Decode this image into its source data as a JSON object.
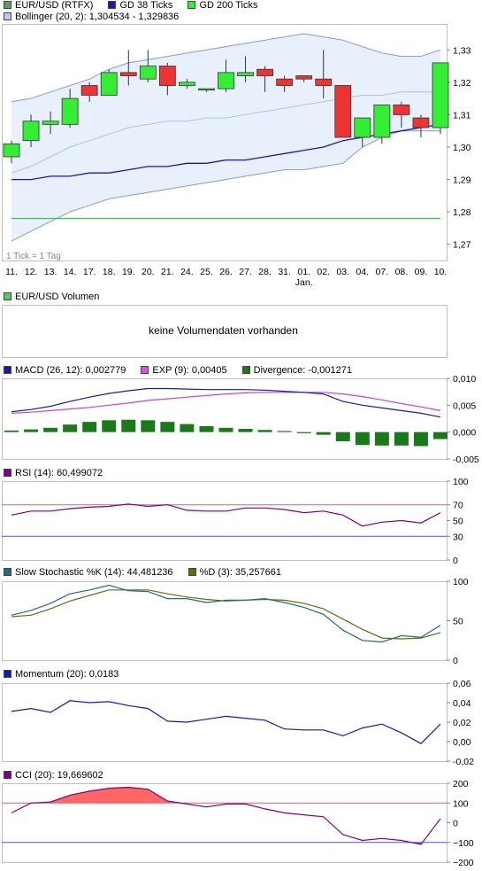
{
  "colors": {
    "up": "#33ee33",
    "down": "#ee3333",
    "gd38": "#1a1aa8",
    "gd200": "#33cc33",
    "bollinger_fill": "#e8f0fc",
    "bollinger_line": "#8899dd",
    "macd": "#1a1aa8",
    "exp": "#d040d0",
    "divergence": "#1a7a1a",
    "rsi": "#800080",
    "stoch_k": "#207070",
    "stoch_d": "#6a6a10",
    "momentum": "#1a1aa8",
    "cci": "#800080",
    "cci_fill": "#ff6666",
    "ref_red": "#e06060",
    "ref_blue": "#5050d0"
  },
  "legends": {
    "main": [
      {
        "label": "EUR/USD (RTFX)",
        "color": "#5a9f5a"
      },
      {
        "label": "GD 38 Ticks",
        "color": "#1a1aa8"
      },
      {
        "label": "GD 200 Ticks",
        "color": "#33ee33"
      }
    ],
    "bollinger": {
      "label": "Bollinger (20, 2): 1,304534 - 1,329836",
      "color": "#b8c8f0"
    },
    "volume": {
      "label": "EUR/USD Volumen",
      "color": "#55cc55"
    },
    "macd": [
      {
        "label": "MACD (26, 12): 0,002779",
        "color": "#1a1aa8"
      },
      {
        "label": "EXP (9): 0,00405",
        "color": "#e050e0"
      },
      {
        "label": "Divergence: -0,001271",
        "color": "#1a7a1a"
      }
    ],
    "rsi": {
      "label": "RSI (14): 60,499072",
      "color": "#800080"
    },
    "stoch": [
      {
        "label": "Slow Stochastic %K (14): 44,481236",
        "color": "#207070"
      },
      {
        "label": "%D (3): 35,257661",
        "color": "#6a6a10"
      }
    ],
    "momentum": {
      "label": "Momentum (20): 0,0183",
      "color": "#1a1aa8"
    },
    "cci": {
      "label": "CCI (20): 19,669602",
      "color": "#800080"
    }
  },
  "tick_note": "1 Tick = 1 Tag",
  "volume_message": "keine Volumendaten vorhanden",
  "chart_data": [
    {
      "type": "candlestick",
      "categories": [
        "11.",
        "12.",
        "13.",
        "14.",
        "17.",
        "18.",
        "19.",
        "20.",
        "21.",
        "24.",
        "25.",
        "26.",
        "27.",
        "28.",
        "31.",
        "01.",
        "02.",
        "03.",
        "04.",
        "07.",
        "08.",
        "09.",
        "10."
      ],
      "month_label": {
        "after": "01.",
        "text": "Jan."
      },
      "ylim": [
        1.265,
        1.338
      ],
      "yticks": [
        1.27,
        1.28,
        1.29,
        1.3,
        1.31,
        1.32,
        1.33
      ],
      "ytick_labels": [
        "1,27",
        "1,28",
        "1,29",
        "1,30",
        "1,31",
        "1,32",
        "1,33"
      ],
      "ohlc": [
        [
          1.297,
          1.302,
          1.295,
          1.301
        ],
        [
          1.302,
          1.31,
          1.3,
          1.308
        ],
        [
          1.307,
          1.311,
          1.304,
          1.308
        ],
        [
          1.307,
          1.318,
          1.306,
          1.315
        ],
        [
          1.319,
          1.32,
          1.314,
          1.316
        ],
        [
          1.316,
          1.324,
          1.316,
          1.323
        ],
        [
          1.323,
          1.33,
          1.319,
          1.322
        ],
        [
          1.321,
          1.33,
          1.32,
          1.325
        ],
        [
          1.325,
          1.326,
          1.316,
          1.319
        ],
        [
          1.319,
          1.321,
          1.318,
          1.32
        ],
        [
          1.318,
          1.318,
          1.317,
          1.318
        ],
        [
          1.318,
          1.327,
          1.317,
          1.323
        ],
        [
          1.322,
          1.328,
          1.32,
          1.323
        ],
        [
          1.324,
          1.325,
          1.317,
          1.322
        ],
        [
          1.321,
          1.322,
          1.317,
          1.319
        ],
        [
          1.322,
          1.322,
          1.32,
          1.321
        ],
        [
          1.321,
          1.33,
          1.315,
          1.319
        ],
        [
          1.319,
          1.319,
          1.303,
          1.303
        ],
        [
          1.303,
          1.309,
          1.3,
          1.309
        ],
        [
          1.303,
          1.313,
          1.301,
          1.313
        ],
        [
          1.313,
          1.314,
          1.306,
          1.31
        ],
        [
          1.309,
          1.31,
          1.303,
          1.306
        ],
        [
          1.306,
          1.326,
          1.304,
          1.326
        ]
      ],
      "series": [
        {
          "name": "GD 38 Ticks",
          "values": [
            1.29,
            1.29,
            1.291,
            1.291,
            1.292,
            1.292,
            1.293,
            1.294,
            1.294,
            1.295,
            1.295,
            1.296,
            1.296,
            1.297,
            1.298,
            1.299,
            1.3,
            1.302,
            1.303,
            1.304,
            1.305,
            1.306,
            1.307
          ]
        },
        {
          "name": "GD 200 Ticks",
          "values": [
            1.278,
            1.278,
            1.278,
            1.278,
            1.278,
            1.278,
            1.278,
            1.278,
            1.278,
            1.278,
            1.278,
            1.278,
            1.278,
            1.278,
            1.278,
            1.278,
            1.278,
            1.278,
            1.278,
            1.278,
            1.278,
            1.278,
            1.278
          ]
        }
      ],
      "bollinger": {
        "upper": [
          1.314,
          1.315,
          1.317,
          1.319,
          1.321,
          1.324,
          1.326,
          1.327,
          1.328,
          1.329,
          1.33,
          1.331,
          1.332,
          1.333,
          1.334,
          1.335,
          1.334,
          1.333,
          1.331,
          1.329,
          1.328,
          1.328,
          1.33
        ],
        "middle": [
          1.292,
          1.294,
          1.297,
          1.3,
          1.302,
          1.304,
          1.306,
          1.307,
          1.308,
          1.308,
          1.309,
          1.309,
          1.31,
          1.311,
          1.312,
          1.313,
          1.314,
          1.315,
          1.316,
          1.316,
          1.317,
          1.317,
          1.317
        ],
        "lower": [
          1.271,
          1.274,
          1.277,
          1.28,
          1.282,
          1.284,
          1.285,
          1.286,
          1.287,
          1.288,
          1.289,
          1.29,
          1.291,
          1.292,
          1.293,
          1.293,
          1.294,
          1.295,
          1.3,
          1.303,
          1.305,
          1.305,
          1.305
        ]
      }
    },
    {
      "type": "line+bar",
      "name": "MACD",
      "ylim": [
        -0.005,
        0.01
      ],
      "yticks": [
        -0.005,
        0,
        0.005,
        0.01
      ],
      "ytick_labels": [
        "-0,005",
        "0,000",
        "0,005",
        "0,010"
      ],
      "series": [
        {
          "name": "MACD (26, 12)",
          "values": [
            0.0038,
            0.0042,
            0.0048,
            0.0057,
            0.0065,
            0.0072,
            0.0077,
            0.0081,
            0.0081,
            0.008,
            0.0079,
            0.0079,
            0.0079,
            0.0078,
            0.0076,
            0.0074,
            0.0071,
            0.0057,
            0.005,
            0.0045,
            0.004,
            0.0035,
            0.0028
          ]
        },
        {
          "name": "EXP (9)",
          "values": [
            0.0035,
            0.0037,
            0.004,
            0.0043,
            0.0046,
            0.005,
            0.0054,
            0.0059,
            0.0062,
            0.0065,
            0.0068,
            0.0071,
            0.0073,
            0.0074,
            0.0074,
            0.0074,
            0.0074,
            0.0071,
            0.0066,
            0.006,
            0.0053,
            0.0047,
            0.004
          ]
        },
        {
          "name": "Divergence",
          "type": "bar",
          "values": [
            0.0003,
            0.0005,
            0.0008,
            0.0014,
            0.0019,
            0.0022,
            0.0023,
            0.0022,
            0.0019,
            0.0015,
            0.0011,
            0.0008,
            0.0006,
            0.0004,
            0.0002,
            -0.0002,
            -0.0005,
            -0.0017,
            -0.0024,
            -0.0025,
            -0.0025,
            -0.0026,
            -0.0013
          ]
        }
      ]
    },
    {
      "type": "line",
      "name": "RSI",
      "ylim": [
        0,
        100
      ],
      "yticks": [
        0,
        30,
        50,
        70,
        100
      ],
      "ytick_labels": [
        "0",
        "30",
        "50",
        "70",
        "100"
      ],
      "ref_lines": [
        {
          "value": 70,
          "color": "#e06060"
        },
        {
          "value": 30,
          "color": "#5050d0"
        }
      ],
      "series": [
        {
          "name": "RSI (14)",
          "values": [
            57,
            62,
            62,
            65,
            67,
            68,
            71,
            68,
            70,
            63,
            62,
            62,
            66,
            66,
            64,
            60,
            62,
            57,
            43,
            48,
            50,
            47,
            60
          ]
        }
      ]
    },
    {
      "type": "line",
      "name": "Slow Stochastic",
      "ylim": [
        0,
        100
      ],
      "yticks": [
        0,
        50,
        100
      ],
      "ytick_labels": [
        "0",
        "50",
        "100"
      ],
      "series": [
        {
          "name": "Slow Stochastic %K (14)",
          "values": [
            57,
            63,
            72,
            84,
            89,
            95,
            88,
            87,
            78,
            78,
            73,
            76,
            76,
            78,
            73,
            67,
            58,
            38,
            25,
            23,
            31,
            29,
            44
          ]
        },
        {
          "name": "%D (3)",
          "values": [
            55,
            57,
            65,
            75,
            82,
            89,
            89,
            89,
            84,
            80,
            77,
            75,
            76,
            77,
            76,
            72,
            65,
            52,
            39,
            28,
            27,
            28,
            35
          ]
        }
      ]
    },
    {
      "type": "line",
      "name": "Momentum",
      "ylim": [
        -0.02,
        0.06
      ],
      "yticks": [
        -0.02,
        0,
        0.02,
        0.04,
        0.06
      ],
      "ytick_labels": [
        "-0,02",
        "0,00",
        "0,02",
        "0,04",
        "0,06"
      ],
      "series": [
        {
          "name": "Momentum (20)",
          "values": [
            0.031,
            0.034,
            0.03,
            0.042,
            0.04,
            0.041,
            0.037,
            0.034,
            0.021,
            0.02,
            0.023,
            0.026,
            0.024,
            0.022,
            0.013,
            0.012,
            0.012,
            0.006,
            0.014,
            0.018,
            0.009,
            -0.002,
            0.018
          ]
        }
      ]
    },
    {
      "type": "line",
      "name": "CCI",
      "ylim": [
        -200,
        200
      ],
      "yticks": [
        -200,
        -100,
        0,
        100,
        200
      ],
      "ytick_labels": [
        "−200",
        "−100",
        "0",
        "100",
        "200"
      ],
      "ref_lines": [
        {
          "value": 100,
          "color": "#e06060"
        },
        {
          "value": -100,
          "color": "#5050d0"
        }
      ],
      "series": [
        {
          "name": "CCI (20)",
          "values": [
            50,
            100,
            105,
            140,
            160,
            175,
            180,
            170,
            110,
            95,
            80,
            95,
            95,
            70,
            50,
            40,
            30,
            -60,
            -90,
            -80,
            -90,
            -110,
            20
          ]
        }
      ]
    }
  ]
}
